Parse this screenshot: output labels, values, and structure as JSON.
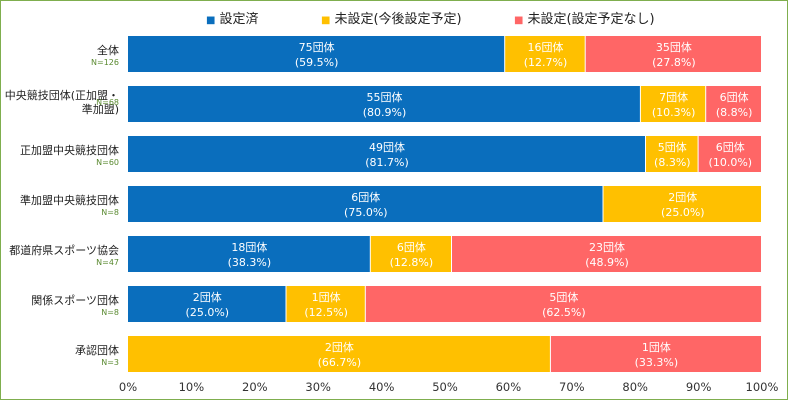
{
  "chart_data": {
    "type": "bar",
    "orientation": "horizontal",
    "stacked": true,
    "categories": [
      {
        "label": [
          "全体"
        ],
        "n": "N=126"
      },
      {
        "label": [
          "中央競技団体(正加盟・",
          "準加盟)"
        ],
        "n": "N=68"
      },
      {
        "label": [
          "正加盟中央競技団体"
        ],
        "n": "N=60"
      },
      {
        "label": [
          "準加盟中央競技団体"
        ],
        "n": "N=8"
      },
      {
        "label": [
          "都道府県スポーツ協会"
        ],
        "n": "N=47"
      },
      {
        "label": [
          "関係スポーツ団体"
        ],
        "n": "N=8"
      },
      {
        "label": [
          "承認団体"
        ],
        "n": "N=3"
      }
    ],
    "series": [
      {
        "name": "設定済",
        "color": "#0a6ebd",
        "values": [
          59.5,
          80.9,
          81.7,
          75.0,
          38.3,
          25.0,
          0
        ],
        "labels": [
          [
            "75団体",
            "(59.5%)"
          ],
          [
            "55団体",
            "(80.9%)"
          ],
          [
            "49団体",
            "(81.7%)"
          ],
          [
            "6団体",
            "(75.0%)"
          ],
          [
            "18団体",
            "(38.3%)"
          ],
          [
            "2団体",
            "(25.0%)"
          ],
          null
        ]
      },
      {
        "name": "未設定(今後設定予定)",
        "color": "#ffc000",
        "values": [
          12.7,
          10.3,
          8.3,
          25.0,
          12.8,
          12.5,
          66.7
        ],
        "labels": [
          [
            "16団体",
            "(12.7%)"
          ],
          [
            "7団体",
            "(10.3%)"
          ],
          [
            "5団体",
            "(8.3%)"
          ],
          [
            "2団体",
            "(25.0%)"
          ],
          [
            "6団体",
            "(12.8%)"
          ],
          [
            "1団体",
            "(12.5%)"
          ],
          [
            "2団体",
            "(66.7%)"
          ]
        ]
      },
      {
        "name": "未設定(設定予定なし)",
        "color": "#ff6666",
        "values": [
          27.8,
          8.8,
          10.0,
          0,
          48.9,
          62.5,
          33.3
        ],
        "labels": [
          [
            "35団体",
            "(27.8%)"
          ],
          [
            "6団体",
            "(8.8%)"
          ],
          [
            "6団体",
            "(10.0%)"
          ],
          null,
          [
            "23団体",
            "(48.9%)"
          ],
          [
            "5団体",
            "(62.5%)"
          ],
          [
            "1団体",
            "(33.3%)"
          ]
        ]
      }
    ],
    "x_ticks": [
      "0%",
      "10%",
      "20%",
      "30%",
      "40%",
      "50%",
      "60%",
      "70%",
      "80%",
      "90%",
      "100%"
    ],
    "xlim": [
      0,
      100
    ],
    "legend_position": "top",
    "legend_marker": "■",
    "grid": false
  }
}
